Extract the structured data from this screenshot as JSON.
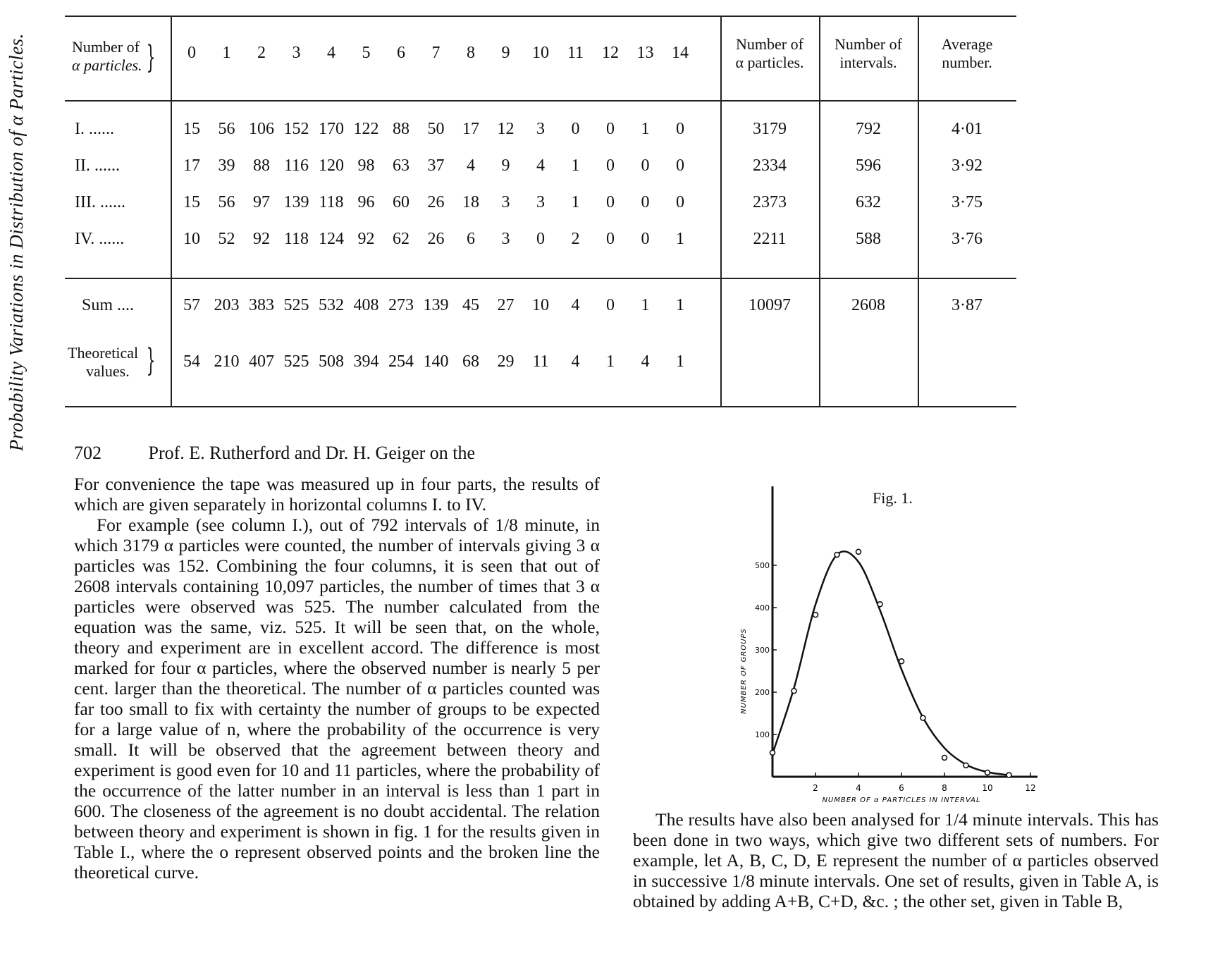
{
  "side_title": "Probability Variations in Distribution of α Particles.",
  "table": {
    "corner_label_line1": "Number of",
    "corner_label_line2": "α particles.",
    "columns": [
      "0",
      "1",
      "2",
      "3",
      "4",
      "5",
      "6",
      "7",
      "8",
      "9",
      "10",
      "11",
      "12",
      "13",
      "14"
    ],
    "total_header_line1": "Number of",
    "total_header_line2": "α particles.",
    "intervals_header_line1": "Number of",
    "intervals_header_line2": "intervals.",
    "average_header_line1": "Average",
    "average_header_line2": "number.",
    "rows": [
      {
        "label": "I. ......",
        "values": [
          "15",
          "56",
          "106",
          "152",
          "170",
          "122",
          "88",
          "50",
          "17",
          "12",
          "3",
          "0",
          "0",
          "1",
          "0"
        ],
        "total": "3179",
        "intervals": "792",
        "average": "4·01"
      },
      {
        "label": "II. ......",
        "values": [
          "17",
          "39",
          "88",
          "116",
          "120",
          "98",
          "63",
          "37",
          "4",
          "9",
          "4",
          "1",
          "0",
          "0",
          "0"
        ],
        "total": "2334",
        "intervals": "596",
        "average": "3·92"
      },
      {
        "label": "III. ......",
        "values": [
          "15",
          "56",
          "97",
          "139",
          "118",
          "96",
          "60",
          "26",
          "18",
          "3",
          "3",
          "1",
          "0",
          "0",
          "0"
        ],
        "total": "2373",
        "intervals": "632",
        "average": "3·75"
      },
      {
        "label": "IV. ......",
        "values": [
          "10",
          "52",
          "92",
          "118",
          "124",
          "92",
          "62",
          "26",
          "6",
          "3",
          "0",
          "2",
          "0",
          "0",
          "1"
        ],
        "total": "2211",
        "intervals": "588",
        "average": "3·76"
      }
    ],
    "sum_row": {
      "label": "Sum ....",
      "values": [
        "57",
        "203",
        "383",
        "525",
        "532",
        "408",
        "273",
        "139",
        "45",
        "27",
        "10",
        "4",
        "0",
        "1",
        "1"
      ],
      "total": "10097",
      "intervals": "2608",
      "average": "3·87"
    },
    "theory_row": {
      "label_line1": "Theoretical",
      "label_line2": "values.",
      "values": [
        "54",
        "210",
        "407",
        "525",
        "508",
        "394",
        "254",
        "140",
        "68",
        "29",
        "11",
        "4",
        "1",
        "4",
        "1"
      ]
    }
  },
  "running_head": {
    "page": "702",
    "text": "Prof. E. Rutherford and Dr. H. Geiger on the"
  },
  "left_column": {
    "para1": "For convenience the tape was measured up in four parts, the results of which are given separately in horizontal columns I. to IV.",
    "para2": "For example (see column I.), out of 792 intervals of 1/8 minute, in which 3179 α particles were counted, the number of intervals giving 3 α particles was 152. Combining the four columns, it is seen that out of 2608 intervals containing 10,097 particles, the number of times that 3 α particles were observed was 525. The number calculated from the equation was the same, viz. 525. It will be seen that, on the whole, theory and experiment are in excellent accord. The difference is most marked for four α particles, where the observed number is nearly 5 per cent. larger than the theoretical. The number of α particles counted was far too small to fix with certainty the number of groups to be expected for a large value of n, where the probability of the occurrence is very small. It will be observed that the agreement between theory and experiment is good even for 10 and 11 particles, where the probability of the occurrence of the latter number in an interval is less than 1 part in 600. The closeness of the agreement is no doubt accidental. The relation between theory and experiment is shown in fig. 1 for the results given in Table I., where the o represent observed points and the broken line the theoretical curve."
  },
  "right_column": {
    "para1": "The results have also been analysed for 1/4 minute intervals. This has been done in two ways, which give two different sets of numbers. For example, let A, B, C, D, E represent the number of α particles observed in successive 1/8 minute intervals. One set of results, given in Table A, is obtained by adding A+B, C+D, &c. ; the other set, given in Table B,"
  },
  "figure": {
    "title": "Fig. 1.",
    "chart_data": {
      "type": "scatter",
      "xlabel": "NUMBER OF α PARTICLES IN INTERVAL",
      "ylabel": "NUMBER OF GROUPS",
      "xlim": [
        0,
        12
      ],
      "ylim": [
        0,
        600
      ],
      "x_ticks": [
        "2",
        "4",
        "6",
        "8",
        "10",
        "12"
      ],
      "y_ticks": [
        "100",
        "200",
        "300",
        "400",
        "500"
      ],
      "series": [
        {
          "x": [
            0,
            1,
            2,
            3,
            4,
            5,
            6,
            7,
            8,
            9,
            10,
            11
          ],
          "y": [
            57,
            203,
            383,
            525,
            532,
            408,
            273,
            139,
            45,
            27,
            10,
            4
          ]
        }
      ],
      "curve": {
        "x": [
          0,
          1,
          2,
          3,
          4,
          5,
          6,
          7,
          8,
          9,
          10,
          11
        ],
        "y": [
          54,
          210,
          407,
          525,
          508,
          394,
          254,
          140,
          68,
          29,
          11,
          4
        ]
      }
    }
  }
}
